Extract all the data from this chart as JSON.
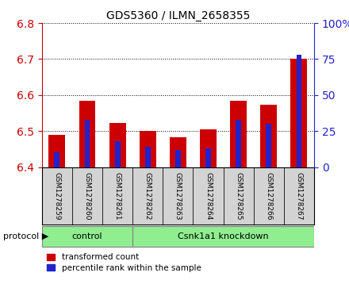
{
  "title": "GDS5360 / ILMN_2658355",
  "samples": [
    "GSM1278259",
    "GSM1278260",
    "GSM1278261",
    "GSM1278262",
    "GSM1278263",
    "GSM1278264",
    "GSM1278265",
    "GSM1278266",
    "GSM1278267"
  ],
  "transformed_count": [
    6.49,
    6.585,
    6.522,
    6.501,
    6.482,
    6.505,
    6.585,
    6.572,
    6.7
  ],
  "percentile_rank": [
    10,
    33,
    18,
    14,
    12,
    13,
    33,
    30,
    78
  ],
  "ylim_left": [
    6.4,
    6.8
  ],
  "ylim_right": [
    0,
    100
  ],
  "yticks_left": [
    6.4,
    6.5,
    6.6,
    6.7,
    6.8
  ],
  "yticks_right": [
    0,
    25,
    50,
    75,
    100
  ],
  "ytick_labels_right": [
    "0",
    "25",
    "50",
    "75",
    "100%"
  ],
  "bar_color_red": "#CC0000",
  "bar_color_blue": "#2222CC",
  "bar_width": 0.55,
  "blue_bar_width": 0.18,
  "protocol_label": "protocol",
  "legend_items": [
    {
      "label": "transformed count",
      "color": "#CC0000"
    },
    {
      "label": "percentile rank within the sample",
      "color": "#2222CC"
    }
  ],
  "background_color": "#ffffff",
  "plot_bg_color": "#ffffff",
  "tick_label_area_color": "#d3d3d3",
  "left_tick_color": "#CC0000",
  "right_tick_color": "#2222CC",
  "control_count": 3,
  "knockdown_label": "Csnk1a1 knockdown",
  "control_label": "control",
  "group_color": "#90EE90"
}
